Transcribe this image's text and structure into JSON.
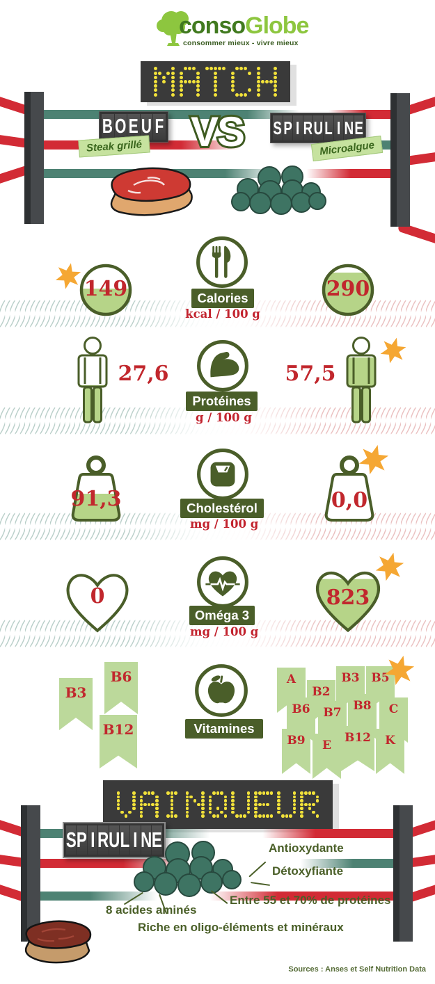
{
  "logo": {
    "brand_left": "conso",
    "brand_right": "Globe",
    "tagline": "consommer mieux - vivre mieux"
  },
  "match": {
    "sign": "MATCH",
    "vs": "VS",
    "left": {
      "name": "BOEUF",
      "subtitle": "Steak grillé"
    },
    "right": {
      "name": "SPIRULINE",
      "subtitle": "Microalgue"
    }
  },
  "rows": [
    {
      "id": "calories",
      "label": "Calories",
      "unit": "kcal / 100 g",
      "icon": "fork-knife-icon",
      "left_value": "149",
      "right_value": "290",
      "winner": "left"
    },
    {
      "id": "proteines",
      "label": "Protéines",
      "unit": "g / 100 g",
      "icon": "bicep-icon",
      "left_value": "27,6",
      "right_value": "57,5",
      "winner": "right"
    },
    {
      "id": "cholesterol",
      "label": "Cholestérol",
      "unit": "mg / 100 g",
      "icon": "scale-icon",
      "left_value": "91,3",
      "right_value": "0,0",
      "winner": "right"
    },
    {
      "id": "omega3",
      "label": "Oméga 3",
      "unit": "mg / 100 g",
      "icon": "heart-pulse-icon",
      "left_value": "0",
      "right_value": "823",
      "winner": "right"
    },
    {
      "id": "vitamines",
      "label": "Vitamines",
      "unit": "",
      "icon": "apple-icon",
      "left_vitamins": [
        "B3",
        "B6",
        "B12"
      ],
      "right_vitamins": [
        "A",
        "B2",
        "B3",
        "B5",
        "B6",
        "B7",
        "B8",
        "C",
        "B9",
        "E",
        "B12",
        "K"
      ],
      "winner": "right"
    }
  ],
  "winner": {
    "sign": "VAINQUEUR",
    "name": "SPIRULINE",
    "benefits": [
      "Antioxydante",
      "Détoxyfiante",
      "Entre 55 et 70% de protéines",
      "8 acides aminés",
      "Riche en oligo-éléments et minéraux"
    ]
  },
  "sources": "Sources : Anses et Self Nutrition Data",
  "colors": {
    "red_value": "#c1272d",
    "green_dark": "#4a5e29",
    "green_fill": "#b6d488",
    "pennant_green": "#bcd99b",
    "rope_red": "#d22b35",
    "rope_teal": "#4d8273",
    "led_yellow": "#f2e23a",
    "star_orange": "#f5a733",
    "coil_teal": "#b5ccc6",
    "coil_pink": "#e9bdbd",
    "logo_dark_green": "#417a1f",
    "logo_light_green": "#8dc63f"
  },
  "chart_data": {
    "type": "table",
    "title": "MATCH — BOEUF vs SPIRULINE",
    "categories": [
      "Calories (kcal/100 g)",
      "Protéines (g/100 g)",
      "Cholestérol (mg/100 g)",
      "Oméga 3 (mg/100 g)"
    ],
    "series": [
      {
        "name": "Boeuf (steak grillé)",
        "values": [
          149,
          27.6,
          91.3,
          0
        ]
      },
      {
        "name": "Spiruline (microalgue)",
        "values": [
          290,
          57.5,
          0.0,
          823
        ]
      }
    ],
    "vitamins": {
      "boeuf": [
        "B3",
        "B6",
        "B12"
      ],
      "spiruline": [
        "A",
        "B2",
        "B3",
        "B5",
        "B6",
        "B7",
        "B8",
        "C",
        "B9",
        "E",
        "B12",
        "K"
      ]
    },
    "winner": "SPIRULINE"
  }
}
